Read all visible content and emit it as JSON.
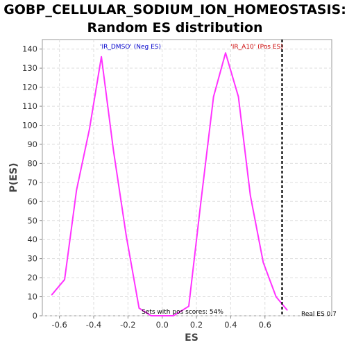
{
  "chart_data": {
    "type": "line",
    "title_lines": [
      "GOBP_CELLULAR_SODIUM_ION_HOMEOSTASIS:",
      "Random ES distribution"
    ],
    "xlabel": "ES",
    "ylabel": "P(ES)",
    "xlim": [
      -0.7,
      0.99
    ],
    "ylim": [
      0,
      145
    ],
    "xticks": [
      -0.6,
      -0.4,
      -0.2,
      0.0,
      0.2,
      0.4,
      0.6
    ],
    "xtick_labels": [
      "-0.6",
      "-0.4",
      "-0.2",
      "0.0",
      "0.2",
      "0.4",
      "0.6"
    ],
    "yticks": [
      0,
      10,
      20,
      30,
      40,
      50,
      60,
      70,
      80,
      90,
      100,
      110,
      120,
      130,
      140
    ],
    "ytick_labels": [
      "0",
      "10",
      "20",
      "30",
      "40",
      "50",
      "60",
      "70",
      "80",
      "90",
      "100",
      "110",
      "120",
      "130",
      "140"
    ],
    "grid": true,
    "series": [
      {
        "color": "#ff33ff",
        "x": [
          -0.645,
          -0.57,
          -0.5,
          -0.425,
          -0.355,
          -0.285,
          -0.21,
          -0.135,
          -0.065,
          0.0,
          0.065,
          0.155,
          0.225,
          0.3,
          0.37,
          0.445,
          0.515,
          0.59,
          0.665,
          0.73
        ],
        "y": [
          11,
          19,
          66,
          98,
          136,
          87,
          42,
          4,
          0,
          0,
          0,
          5,
          59,
          115,
          138,
          115,
          63,
          28,
          10,
          3
        ]
      }
    ],
    "vline": {
      "x": 0.7,
      "color": "#000000",
      "style": "dashed"
    },
    "annotations": {
      "neg_label": {
        "text": "'IR_DMSO' (Neg ES)",
        "color": "#0000cc"
      },
      "pos_label": {
        "text": "'IR_A10' (Pos ES)",
        "color": "#cc0000"
      },
      "pos_scores": {
        "text": "Sets with pos scores: 54%",
        "color": "#000000"
      },
      "real_es": {
        "text": "Real ES 0.7",
        "color": "#000000"
      }
    }
  }
}
